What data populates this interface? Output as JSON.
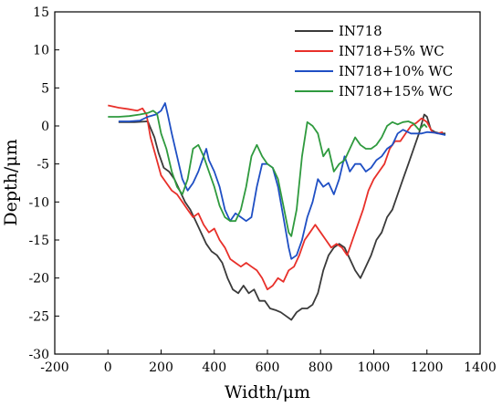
{
  "chart_data": {
    "type": "line",
    "xlabel": "Width/μm",
    "ylabel": "Depth/μm",
    "xlim": [
      -200,
      1400
    ],
    "ylim": [
      -30,
      15
    ],
    "xticks": [
      -200,
      0,
      200,
      400,
      600,
      800,
      1000,
      1200,
      1400
    ],
    "yticks": [
      15,
      10,
      5,
      0,
      -5,
      -10,
      -15,
      -20,
      -25,
      -30
    ],
    "grid": false,
    "legend_position": "top-right",
    "series": [
      {
        "name": "IN718",
        "color": "#3a3a3a",
        "points": [
          [
            40,
            0.5
          ],
          [
            100,
            0.5
          ],
          [
            150,
            0.6
          ],
          [
            175,
            -1.5
          ],
          [
            190,
            -3.5
          ],
          [
            210,
            -5.5
          ],
          [
            230,
            -6
          ],
          [
            250,
            -7
          ],
          [
            270,
            -8.5
          ],
          [
            290,
            -10
          ],
          [
            310,
            -11
          ],
          [
            330,
            -12.5
          ],
          [
            350,
            -14
          ],
          [
            370,
            -15.5
          ],
          [
            390,
            -16.5
          ],
          [
            410,
            -17
          ],
          [
            430,
            -18
          ],
          [
            450,
            -20
          ],
          [
            470,
            -21.5
          ],
          [
            490,
            -22
          ],
          [
            510,
            -21
          ],
          [
            530,
            -22
          ],
          [
            550,
            -21.5
          ],
          [
            570,
            -23
          ],
          [
            590,
            -23
          ],
          [
            610,
            -24
          ],
          [
            630,
            -24.2
          ],
          [
            650,
            -24.5
          ],
          [
            670,
            -25
          ],
          [
            690,
            -25.5
          ],
          [
            710,
            -24.5
          ],
          [
            730,
            -24
          ],
          [
            750,
            -24
          ],
          [
            770,
            -23.5
          ],
          [
            790,
            -22
          ],
          [
            810,
            -19
          ],
          [
            830,
            -17
          ],
          [
            850,
            -16
          ],
          [
            870,
            -15.5
          ],
          [
            890,
            -16
          ],
          [
            910,
            -17.5
          ],
          [
            930,
            -19
          ],
          [
            950,
            -20
          ],
          [
            970,
            -18.5
          ],
          [
            990,
            -17
          ],
          [
            1010,
            -15
          ],
          [
            1030,
            -14
          ],
          [
            1050,
            -12
          ],
          [
            1070,
            -11
          ],
          [
            1090,
            -9
          ],
          [
            1110,
            -7
          ],
          [
            1130,
            -5
          ],
          [
            1150,
            -3
          ],
          [
            1170,
            -1
          ],
          [
            1190,
            1.5
          ],
          [
            1200,
            1.2
          ],
          [
            1215,
            -0.5
          ],
          [
            1230,
            -0.8
          ],
          [
            1250,
            -1
          ],
          [
            1270,
            -1
          ]
        ]
      },
      {
        "name": "IN718+5%  WC",
        "color": "#e8302a",
        "points": [
          [
            0,
            2.7
          ],
          [
            40,
            2.4
          ],
          [
            80,
            2.2
          ],
          [
            110,
            2.0
          ],
          [
            130,
            2.3
          ],
          [
            145,
            1.5
          ],
          [
            160,
            -1.5
          ],
          [
            180,
            -4
          ],
          [
            200,
            -6.5
          ],
          [
            220,
            -7.5
          ],
          [
            240,
            -8.5
          ],
          [
            260,
            -9
          ],
          [
            280,
            -10
          ],
          [
            300,
            -11
          ],
          [
            320,
            -12
          ],
          [
            340,
            -11.5
          ],
          [
            360,
            -13
          ],
          [
            380,
            -14
          ],
          [
            400,
            -13.5
          ],
          [
            420,
            -15
          ],
          [
            440,
            -16
          ],
          [
            460,
            -17.5
          ],
          [
            480,
            -18
          ],
          [
            500,
            -18.5
          ],
          [
            520,
            -18
          ],
          [
            540,
            -18.5
          ],
          [
            560,
            -19
          ],
          [
            580,
            -20
          ],
          [
            600,
            -21.5
          ],
          [
            620,
            -21
          ],
          [
            640,
            -20
          ],
          [
            660,
            -20.5
          ],
          [
            680,
            -19
          ],
          [
            700,
            -18.5
          ],
          [
            720,
            -17
          ],
          [
            740,
            -15
          ],
          [
            760,
            -14
          ],
          [
            780,
            -13
          ],
          [
            800,
            -14
          ],
          [
            820,
            -15
          ],
          [
            840,
            -16
          ],
          [
            860,
            -15.5
          ],
          [
            880,
            -16
          ],
          [
            900,
            -17
          ],
          [
            920,
            -15
          ],
          [
            940,
            -13
          ],
          [
            960,
            -11
          ],
          [
            980,
            -8.5
          ],
          [
            1000,
            -7
          ],
          [
            1020,
            -6
          ],
          [
            1040,
            -5
          ],
          [
            1060,
            -3
          ],
          [
            1080,
            -2
          ],
          [
            1100,
            -2
          ],
          [
            1120,
            -1
          ],
          [
            1140,
            0
          ],
          [
            1160,
            0.4
          ],
          [
            1180,
            1.0
          ],
          [
            1200,
            0.5
          ],
          [
            1220,
            -0.8
          ],
          [
            1240,
            -1.0
          ],
          [
            1260,
            -0.8
          ]
        ]
      },
      {
        "name": "IN718+10% WC",
        "color": "#1f4fc4",
        "points": [
          [
            40,
            0.6
          ],
          [
            80,
            0.6
          ],
          [
            120,
            0.7
          ],
          [
            150,
            1.2
          ],
          [
            180,
            1.5
          ],
          [
            200,
            2.0
          ],
          [
            215,
            3.0
          ],
          [
            225,
            1.5
          ],
          [
            240,
            -1
          ],
          [
            260,
            -4
          ],
          [
            280,
            -7
          ],
          [
            300,
            -8.5
          ],
          [
            320,
            -7.5
          ],
          [
            340,
            -6
          ],
          [
            360,
            -4
          ],
          [
            370,
            -3
          ],
          [
            380,
            -4.5
          ],
          [
            400,
            -6
          ],
          [
            420,
            -8
          ],
          [
            440,
            -11
          ],
          [
            460,
            -12.5
          ],
          [
            480,
            -11.5
          ],
          [
            500,
            -12
          ],
          [
            520,
            -12.5
          ],
          [
            540,
            -12
          ],
          [
            560,
            -8
          ],
          [
            580,
            -5
          ],
          [
            600,
            -5
          ],
          [
            620,
            -5.5
          ],
          [
            640,
            -8
          ],
          [
            660,
            -12
          ],
          [
            680,
            -16
          ],
          [
            690,
            -17.5
          ],
          [
            710,
            -17
          ],
          [
            730,
            -15
          ],
          [
            750,
            -12
          ],
          [
            770,
            -10
          ],
          [
            790,
            -7
          ],
          [
            810,
            -8
          ],
          [
            830,
            -7.5
          ],
          [
            850,
            -9
          ],
          [
            870,
            -7
          ],
          [
            890,
            -4
          ],
          [
            910,
            -6
          ],
          [
            930,
            -5
          ],
          [
            950,
            -5
          ],
          [
            970,
            -6
          ],
          [
            990,
            -5.5
          ],
          [
            1010,
            -4.5
          ],
          [
            1030,
            -4
          ],
          [
            1050,
            -3
          ],
          [
            1070,
            -2.5
          ],
          [
            1090,
            -1
          ],
          [
            1110,
            -0.5
          ],
          [
            1140,
            -1
          ],
          [
            1160,
            -1
          ],
          [
            1180,
            -1
          ],
          [
            1200,
            -0.8
          ],
          [
            1230,
            -0.9
          ],
          [
            1270,
            -1.2
          ]
        ]
      },
      {
        "name": "IN718+15% WC",
        "color": "#2f9a3e",
        "points": [
          [
            0,
            1.2
          ],
          [
            40,
            1.2
          ],
          [
            80,
            1.3
          ],
          [
            120,
            1.5
          ],
          [
            150,
            1.7
          ],
          [
            170,
            2.0
          ],
          [
            185,
            1.6
          ],
          [
            200,
            -1
          ],
          [
            220,
            -3
          ],
          [
            240,
            -6
          ],
          [
            260,
            -8
          ],
          [
            280,
            -9
          ],
          [
            300,
            -7
          ],
          [
            320,
            -3
          ],
          [
            340,
            -2.5
          ],
          [
            360,
            -4
          ],
          [
            380,
            -6
          ],
          [
            400,
            -8
          ],
          [
            420,
            -10.5
          ],
          [
            440,
            -12
          ],
          [
            460,
            -12.5
          ],
          [
            480,
            -12.5
          ],
          [
            500,
            -11
          ],
          [
            520,
            -8
          ],
          [
            540,
            -4
          ],
          [
            560,
            -2.5
          ],
          [
            580,
            -4
          ],
          [
            600,
            -5
          ],
          [
            620,
            -5.5
          ],
          [
            640,
            -7
          ],
          [
            660,
            -10.5
          ],
          [
            680,
            -14
          ],
          [
            690,
            -14.5
          ],
          [
            710,
            -11
          ],
          [
            730,
            -4
          ],
          [
            750,
            0.5
          ],
          [
            770,
            0
          ],
          [
            790,
            -1
          ],
          [
            810,
            -4
          ],
          [
            830,
            -3
          ],
          [
            850,
            -6
          ],
          [
            870,
            -5
          ],
          [
            890,
            -4.5
          ],
          [
            910,
            -3
          ],
          [
            930,
            -1.5
          ],
          [
            950,
            -2.5
          ],
          [
            970,
            -3
          ],
          [
            990,
            -3
          ],
          [
            1010,
            -2.5
          ],
          [
            1030,
            -1.5
          ],
          [
            1050,
            0
          ],
          [
            1070,
            0.5
          ],
          [
            1090,
            0.2
          ],
          [
            1110,
            0.5
          ],
          [
            1130,
            0.6
          ],
          [
            1150,
            0.3
          ],
          [
            1170,
            -0.5
          ],
          [
            1190,
            0.2
          ],
          [
            1200,
            -0.2
          ]
        ]
      }
    ]
  }
}
